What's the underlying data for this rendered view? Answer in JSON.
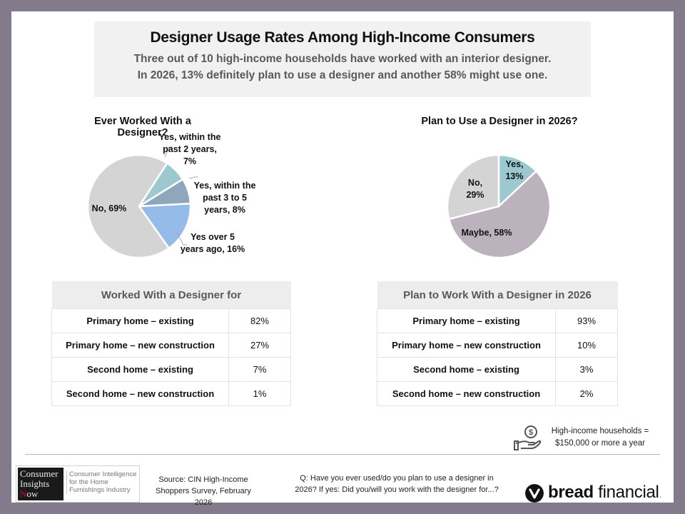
{
  "banner": {
    "title": "Designer Usage Rates Among High-Income Consumers",
    "line1": "Three out of 10 high-income households have worked with an interior designer.",
    "line2": "In 2026, 13% definitely plan to use a designer and another 58% might use one."
  },
  "chart_data": [
    {
      "type": "pie",
      "title": "Ever Worked With a Designer?",
      "slices": [
        {
          "label": "Yes, within the past 2 years",
          "value": 7,
          "color": "#9cc9d0",
          "label_lines": [
            "Yes, within the",
            "past 2 years,",
            "7%"
          ]
        },
        {
          "label": "Yes, within the past 3 to 5 years",
          "value": 8,
          "color": "#8fa6bd",
          "label_lines": [
            "Yes, within the",
            "past 3 to 5",
            "years, 8%"
          ]
        },
        {
          "label": "Yes over 5 years ago",
          "value": 16,
          "color": "#95bbe8",
          "label_lines": [
            "Yes over 5",
            "years ago, 16%"
          ]
        },
        {
          "label": "No",
          "value": 69,
          "color": "#d4d4d4",
          "label_lines": [
            "No, 69%"
          ]
        }
      ]
    },
    {
      "type": "pie",
      "title": "Plan to Use a Designer in 2026?",
      "slices": [
        {
          "label": "Yes",
          "value": 13,
          "color": "#9cc9d0",
          "label_lines": [
            "Yes,",
            "13%"
          ]
        },
        {
          "label": "Maybe",
          "value": 58,
          "color": "#bbb2be",
          "label_lines": [
            "Maybe, 58%"
          ]
        },
        {
          "label": "No",
          "value": 29,
          "color": "#d4d4d4",
          "label_lines": [
            "No,",
            "29%"
          ]
        }
      ]
    }
  ],
  "tables": {
    "worked": {
      "header": "Worked With a Designer for",
      "rows": [
        {
          "label": "Primary home – existing",
          "value": "82%"
        },
        {
          "label": "Primary home – new construction",
          "value": "27%"
        },
        {
          "label": "Second home – existing",
          "value": "7%"
        },
        {
          "label": "Second home – new construction",
          "value": "1%"
        }
      ]
    },
    "plan": {
      "header": "Plan to Work With a Designer in 2026",
      "rows": [
        {
          "label": "Primary home – existing",
          "value": "93%"
        },
        {
          "label": "Primary home – new construction",
          "value": "10%"
        },
        {
          "label": "Second home – existing",
          "value": "3%"
        },
        {
          "label": "Second home – new construction",
          "value": "2%"
        }
      ]
    }
  },
  "note": {
    "icon": "hand-holding-dollar-icon",
    "line1": "High-income households =",
    "line2": "$150,000 or more a year"
  },
  "footer": {
    "cin_logo": {
      "dark_lines": [
        "Consumer",
        "Insights",
        "Now"
      ],
      "light_text": "Consumer Intelligence for the Home Furnishings Industry"
    },
    "source": "Source: CIN High-Income Shoppers Survey, February 2026",
    "question": "Q: Have you ever used/do you plan to use a designer in 2026? If yes: Did you/will you work with the designer for...?",
    "brand_bold": "bread",
    "brand_rest": " financial",
    "brand_dot": "."
  }
}
